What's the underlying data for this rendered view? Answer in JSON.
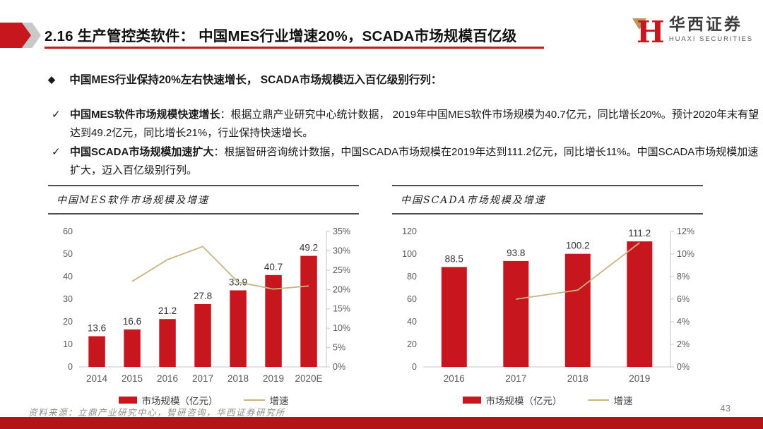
{
  "page": {
    "title": "2.16 生产管控类软件： 中国MES行业增速20%，SCADA市场规模百亿级",
    "page_number": "43",
    "source_note": "资料来源：立鼎产业研究中心，智研咨询，华西证券研究所"
  },
  "logo": {
    "cn": "华西证券",
    "en": "HUAXI SECURITIES"
  },
  "bullets": {
    "headline": "中国MES行业保持20%左右快速增长， SCADA市场规模迈入百亿级别行列：",
    "items": [
      {
        "lead": "中国MES软件市场规模快速增长",
        "body": "：根据立鼎产业研究中心统计数据， 2019年中国MES软件市场规模为40.7亿元，同比增长20%。预计2020年末有望达到49.2亿元，同比增长21%，行业保持快速增长。"
      },
      {
        "lead": "中国SCADA市场规模加速扩大",
        "body": "：根据智研咨询统计数据，中国SCADA市场规模在2019年达到111.2亿元，同比增长11%。中国SCADA市场规模加速扩大，迈入百亿级别行列。"
      }
    ]
  },
  "colors": {
    "bar_red": "#c8161e",
    "line_tan": "#c9b37e",
    "axis_line": "#c4c4c4",
    "footer_bar": "#b5121a"
  },
  "chart_data": [
    {
      "type": "bar",
      "title": "中国MES软件市场规模及增速",
      "categories": [
        "2014",
        "2015",
        "2016",
        "2017",
        "2018",
        "2019",
        "2020E"
      ],
      "series": [
        {
          "name": "市场规模（亿元）",
          "type": "bar",
          "axis": "left",
          "values": [
            13.6,
            16.6,
            21.2,
            27.8,
            33.9,
            40.7,
            49.2
          ]
        },
        {
          "name": "增速",
          "type": "line",
          "axis": "right",
          "unit": "%",
          "values": [
            null,
            22.1,
            27.7,
            31.1,
            21.9,
            20.1,
            20.9
          ]
        }
      ],
      "bar_labels": [
        "13.6",
        "16.6",
        "21.2",
        "27.8",
        "33.9",
        "40.7",
        "49.2"
      ],
      "left_axis": {
        "min": 0,
        "max": 60,
        "step": 10,
        "labels": [
          "0",
          "10",
          "20",
          "30",
          "40",
          "50",
          "60"
        ]
      },
      "right_axis": {
        "min": 0,
        "max": 35,
        "step": 5,
        "labels": [
          "0%",
          "5%",
          "10%",
          "15%",
          "20%",
          "25%",
          "30%",
          "35%"
        ]
      },
      "grid": false,
      "legend_position": "bottom"
    },
    {
      "type": "bar",
      "title": "中国SCADA市场规模及增速",
      "categories": [
        "2016",
        "2017",
        "2018",
        "2019"
      ],
      "series": [
        {
          "name": "市场规模（亿元）",
          "type": "bar",
          "axis": "left",
          "values": [
            88.5,
            93.8,
            100.2,
            111.2
          ]
        },
        {
          "name": "增速",
          "type": "line",
          "axis": "right",
          "unit": "%",
          "values": [
            null,
            6.0,
            6.8,
            11.0
          ]
        }
      ],
      "bar_labels": [
        "88.5",
        "93.8",
        "100.2",
        "111.2"
      ],
      "left_axis": {
        "min": 0,
        "max": 120,
        "step": 20,
        "labels": [
          "0",
          "20",
          "40",
          "60",
          "80",
          "100",
          "120"
        ]
      },
      "right_axis": {
        "min": 0,
        "max": 12,
        "step": 2,
        "labels": [
          "0%",
          "2%",
          "4%",
          "6%",
          "8%",
          "10%",
          "12%"
        ]
      },
      "grid": false,
      "legend_position": "bottom"
    }
  ]
}
